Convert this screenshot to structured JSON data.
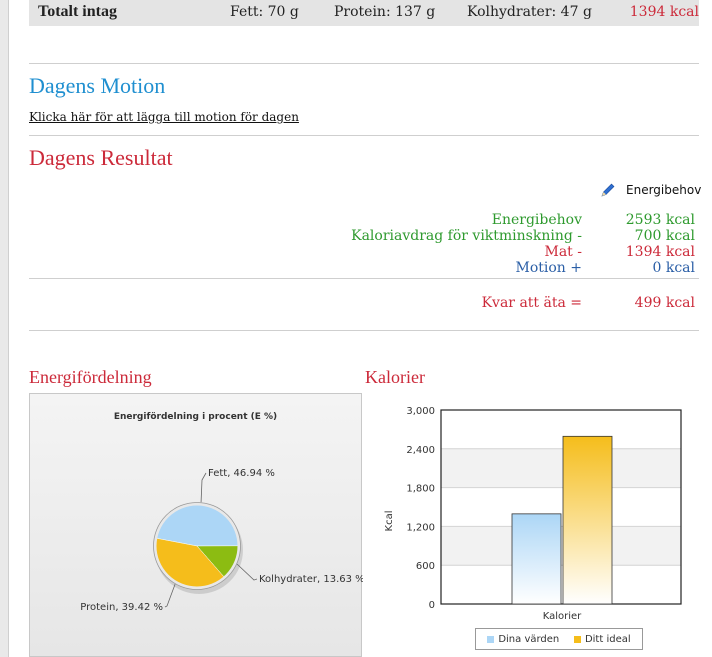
{
  "totals": {
    "title": "Totalt intag",
    "fat": "Fett: 70 g",
    "protein": "Protein: 137 g",
    "carbs": "Kolhydrater: 47 g",
    "kcal": "1394 kcal"
  },
  "exercise": {
    "heading": "Dagens Motion",
    "link": "Klicka här för att lägga till motion för dagen"
  },
  "result": {
    "heading": "Dagens Resultat",
    "edit_label": "Energibehov",
    "rows": [
      {
        "label": "Energibehov",
        "value": "2593 kcal"
      },
      {
        "label": "Kaloriavdrag för viktminskning  -",
        "value": "700 kcal"
      },
      {
        "label": "Mat  -",
        "value": "1394 kcal"
      },
      {
        "label": "Motion +",
        "value": "0 kcal"
      }
    ],
    "remaining_label": "Kvar att äta =",
    "remaining_value": "499 kcal"
  },
  "colors": {
    "accent_blue": "#1f8fd0",
    "accent_red": "#cc2a3a",
    "green": "#2e9a2e",
    "navy": "#2a5ea6"
  },
  "energy_section": {
    "heading": "Energifördelning"
  },
  "calories_section": {
    "heading": "Kalorier"
  },
  "chart_data": [
    {
      "type": "pie",
      "title": "Energifördelning i procent (E %)",
      "slices": [
        {
          "name": "Fett",
          "value": 46.94,
          "label": "Fett, 46.94 %",
          "color": "#acd6f6"
        },
        {
          "name": "Kolhydrater",
          "value": 13.63,
          "label": "Kolhydrater, 13.63 %",
          "color": "#8cbc12"
        },
        {
          "name": "Protein",
          "value": 39.42,
          "label": "Protein, 39.42 %",
          "color": "#f5bd1b"
        }
      ]
    },
    {
      "type": "bar",
      "title": "",
      "categories": [
        "Kalorier"
      ],
      "ylabel": "Kcal",
      "ylim": [
        0,
        3000
      ],
      "yticks": [
        0,
        600,
        1200,
        1800,
        2400,
        3000
      ],
      "ytick_labels": [
        "0",
        "600",
        "1,200",
        "1,800",
        "2,400",
        "3,000"
      ],
      "grid": true,
      "legend": "bottom",
      "series": [
        {
          "name": "Dina värden",
          "values": [
            1394
          ],
          "color": "#acd6f6"
        },
        {
          "name": "Ditt ideal",
          "values": [
            2593
          ],
          "color": "#f5bd1b"
        }
      ]
    }
  ]
}
